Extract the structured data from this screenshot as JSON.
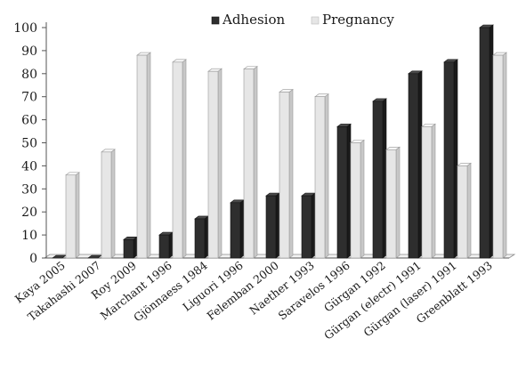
{
  "chart_data": {
    "type": "bar",
    "categories": [
      "Kaya 2005",
      "Takahashi 2007",
      "Roy 2009",
      "Marchant 1996",
      "Gjönnaess 1984",
      "Liguori 1996",
      "Felemban 2000",
      "Naether 1993",
      "Saravelos 1996",
      "Gürgan 1992",
      "Gürgan (electr) 1991",
      "Gürgan (laser) 1991",
      "Greenblatt 1993"
    ],
    "series": [
      {
        "name": "Adhesion",
        "values": [
          0,
          0,
          8,
          10,
          17,
          24,
          27,
          27,
          57,
          68,
          80,
          85,
          100
        ],
        "color": "#2e2e2e"
      },
      {
        "name": "Pregnancy",
        "values": [
          36,
          46,
          88,
          85,
          81,
          82,
          72,
          70,
          50,
          47,
          57,
          40,
          88
        ],
        "color": "#e6e6e6"
      }
    ],
    "yticks": [
      "0",
      "10",
      "20",
      "30",
      "40",
      "50",
      "60",
      "70",
      "80",
      "90",
      "100"
    ],
    "ylim": [
      0,
      100
    ],
    "grid": false,
    "legend_position": "top"
  }
}
